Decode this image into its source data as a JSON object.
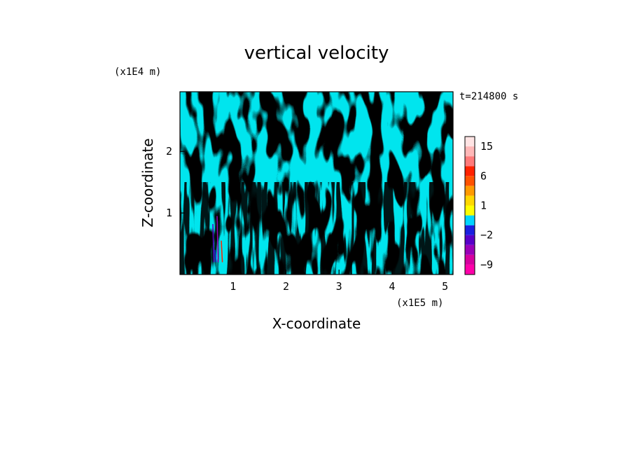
{
  "chart_data": {
    "type": "heatmap",
    "title": "vertical velocity",
    "xlabel": "X-coordinate",
    "ylabel": "Z-coordinate",
    "x_unit": "(x1E5 m)",
    "y_unit": "(x1E4 m)",
    "time_label": "t=214800 s",
    "xlim": [
      0,
      5.15
    ],
    "ylim": [
      0,
      2.97
    ],
    "x_ticks": [
      1,
      2,
      3,
      4,
      5
    ],
    "y_ticks": [
      1,
      2
    ],
    "x_tick_labels": [
      "1",
      "2",
      "3",
      "4",
      "5"
    ],
    "y_tick_labels": [
      "1",
      "2"
    ],
    "colorbar": {
      "levels": [
        -12,
        -9,
        -6,
        -4,
        -2,
        -1,
        0,
        1,
        2,
        4,
        6,
        9,
        12,
        15,
        20
      ],
      "colors": [
        "#ff00aa",
        "#d6009f",
        "#9a00b8",
        "#5800c8",
        "#1a20e0",
        "#00d5ff",
        "#ffff00",
        "#ffd700",
        "#ff9a00",
        "#ff5200",
        "#ff2200",
        "#ff7a7a",
        "#ffb8b8",
        "#ffe4e4"
      ],
      "tick_labels": [
        "15",
        "6",
        "1",
        "−2",
        "−9"
      ],
      "tick_values": [
        15,
        6,
        1,
        -2,
        -9
      ]
    },
    "field_colors": {
      "positive": "#ffff00",
      "negative": "#00e5ee"
    }
  }
}
